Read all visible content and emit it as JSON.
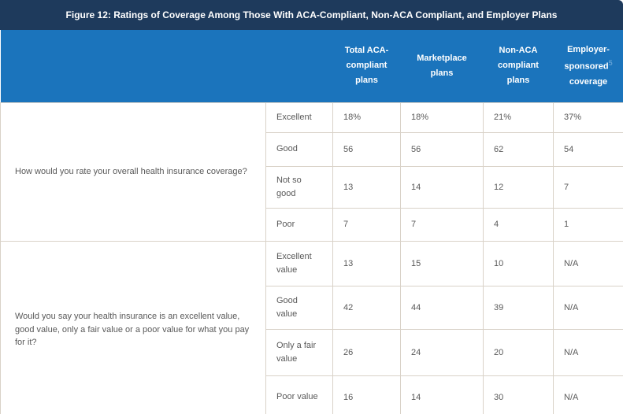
{
  "title_bar": {
    "text": "Figure 12: Ratings of Coverage Among Those With ACA-Compliant, Non-ACA Compliant, and Employer Plans"
  },
  "header_display": {
    "employer_part1": "Employer-sponsored",
    "footnote": "5",
    "employer_part2": "coverage"
  },
  "colors": {
    "title_bar_bg": "#1e3a5c",
    "header_bg": "#1b74bc",
    "border": "#d9d2c8",
    "body_text": "#595959",
    "header_text": "#ffffff",
    "footnote": "#5f9fd4"
  },
  "chart_data": {
    "type": "table",
    "title": "Figure 12: Ratings of Coverage Among Those With ACA-Compliant, Non-ACA Compliant, and Employer Plans",
    "columns": [
      "Total ACA-compliant plans",
      "Marketplace plans",
      "Non-ACA compliant plans",
      "Employer-sponsored coverage"
    ],
    "sections": [
      {
        "question": "How would you rate your overall health insurance coverage?",
        "rows": [
          {
            "rating": "Excellent",
            "values": [
              "18%",
              "18%",
              "21%",
              "37%"
            ]
          },
          {
            "rating": "Good",
            "values": [
              "56",
              "56",
              "62",
              "54"
            ]
          },
          {
            "rating": "Not so good",
            "values": [
              "13",
              "14",
              "12",
              "7"
            ]
          },
          {
            "rating": "Poor",
            "values": [
              "7",
              "7",
              "4",
              "1"
            ]
          }
        ]
      },
      {
        "question": "Would you say your health insurance is an excellent value, good value, only a fair value or a poor value for what you pay for it?",
        "rows": [
          {
            "rating": "Excellent value",
            "values": [
              "13",
              "15",
              "10",
              "N/A"
            ]
          },
          {
            "rating": "Good value",
            "values": [
              "42",
              "44",
              "39",
              "N/A"
            ]
          },
          {
            "rating": "Only a fair value",
            "values": [
              "26",
              "24",
              "20",
              "N/A"
            ]
          },
          {
            "rating": "Poor value",
            "values": [
              "16",
              "14",
              "30",
              "N/A"
            ]
          }
        ]
      }
    ]
  }
}
